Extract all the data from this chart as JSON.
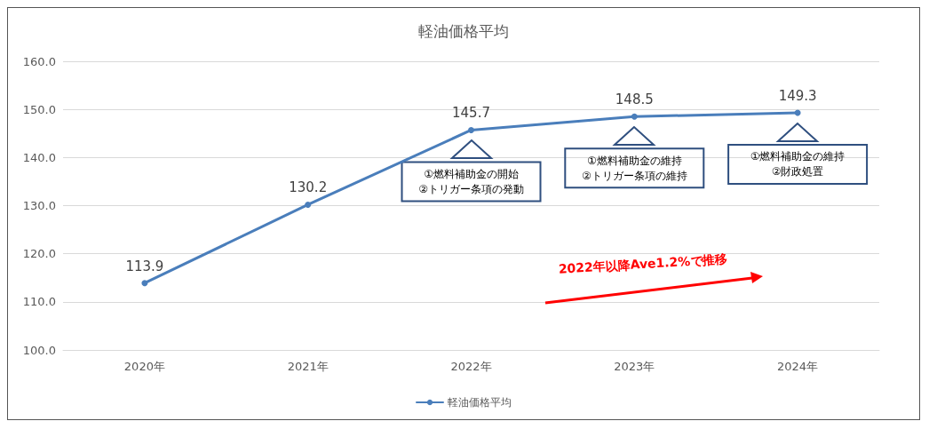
{
  "chart_data": {
    "type": "line",
    "title": "軽油価格平均",
    "categories": [
      "2020年",
      "2021年",
      "2022年",
      "2023年",
      "2024年"
    ],
    "series": [
      {
        "name": "軽油価格平均",
        "color": "#4a7ebb",
        "values": [
          113.9,
          130.2,
          145.7,
          148.5,
          149.3
        ]
      }
    ],
    "ylim": [
      100,
      160
    ],
    "yticks": [
      {
        "value": 100,
        "label": "100.0"
      },
      {
        "value": 110,
        "label": "110.0"
      },
      {
        "value": 120,
        "label": "120.0"
      },
      {
        "value": 130,
        "label": "130.0"
      },
      {
        "value": 140,
        "label": "140.0"
      },
      {
        "value": 150,
        "label": "150.0"
      },
      {
        "value": 160,
        "label": "160.0"
      }
    ],
    "grid": "y",
    "legend": "bottom",
    "marker": "circle",
    "line_style": "solid",
    "data_labels": true,
    "annotations": [
      "①燃料補助金の開始\n②トリガー条項の発動",
      "①燃料補助金の維持\n②トリガー条項の維持",
      "①燃料補助金の維持\n②財政処置",
      "2022年以降Ave1.2%で推移"
    ]
  }
}
